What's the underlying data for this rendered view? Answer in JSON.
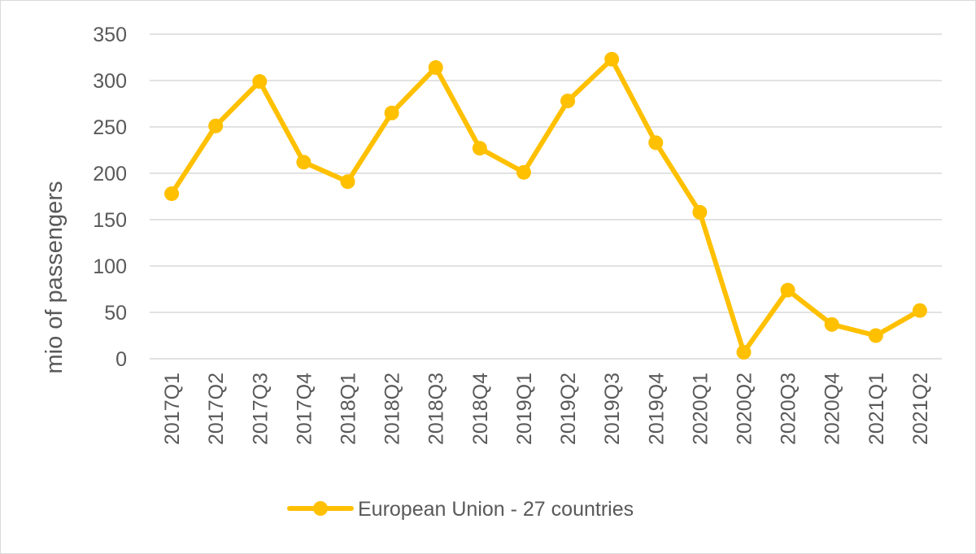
{
  "chart_data": {
    "type": "line",
    "categories": [
      "2017Q1",
      "2017Q2",
      "2017Q3",
      "2017Q4",
      "2018Q1",
      "2018Q2",
      "2018Q3",
      "2018Q4",
      "2019Q1",
      "2019Q2",
      "2019Q3",
      "2019Q4",
      "2020Q1",
      "2020Q2",
      "2020Q3",
      "2020Q4",
      "2021Q1",
      "2021Q2"
    ],
    "series": [
      {
        "name": "European Union - 27 countries",
        "color": "#FFC000",
        "values": [
          178,
          251,
          299,
          212,
          191,
          265,
          314,
          227,
          201,
          278,
          323,
          233,
          158,
          7,
          74,
          37,
          25,
          52
        ]
      }
    ],
    "title": "",
    "xlabel": "",
    "ylabel": "mio of passengers",
    "ylim": [
      0,
      350
    ],
    "yticks": [
      0,
      50,
      100,
      150,
      200,
      250,
      300,
      350
    ],
    "grid": true,
    "legend_position": "bottom"
  }
}
